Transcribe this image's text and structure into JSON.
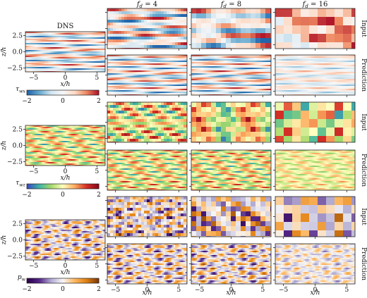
{
  "figure": {
    "dns_title": "DNS",
    "column_titles": [
      "f_d = 4",
      "f_d = 8",
      "f_d = 16"
    ],
    "row_labels": {
      "input": "Input",
      "prediction": "Prediction"
    },
    "xlabel": "x/h",
    "ylabel": "z/h",
    "x_ticks": [
      "−5",
      "0",
      "5"
    ],
    "y_ticks": [
      "2.5",
      "0.0",
      "−2.5"
    ],
    "colorbars": [
      {
        "label": "τ_wx",
        "ticks": [
          "−2",
          "0",
          "2"
        ],
        "colormap": [
          "#2166ac",
          "#67a9cf",
          "#d1e5f0",
          "#f7f7f7",
          "#fddbc7",
          "#ef8a62",
          "#b2182b"
        ]
      },
      {
        "label": "τ_wz",
        "ticks": [
          "−2",
          "0",
          "2"
        ],
        "colormap": [
          "#3b4cc0",
          "#3fb5a5",
          "#a6d96a",
          "#ffffbf",
          "#fdae61",
          "#d73027",
          "#8b0a1a"
        ]
      },
      {
        "label": "p_w",
        "ticks": [
          "−2",
          "0",
          "2"
        ],
        "colormap": [
          "#2d004b",
          "#542788",
          "#b2abd2",
          "#f7f7f7",
          "#fdb863",
          "#e08214",
          "#7f3b08"
        ]
      }
    ]
  },
  "chart_data": [
    {
      "type": "heatmap",
      "title": "",
      "description_fields": [
        "DNS",
        "f_d = 4",
        "f_d = 8",
        "f_d = 16"
      ],
      "xlabel": "x/h",
      "ylabel": "z/h",
      "xlim": [
        -6.3,
        6.3
      ],
      "ylim": [
        -3.1,
        3.1
      ],
      "x_ticks": [
        -5,
        0,
        5
      ],
      "y_ticks": [
        2.5,
        0.0,
        -2.5
      ],
      "variables": [
        "τ_wx",
        "τ_wz",
        "p_w"
      ],
      "color_range": [
        -2,
        2
      ],
      "row_types": [
        "Input",
        "Prediction"
      ]
    }
  ]
}
